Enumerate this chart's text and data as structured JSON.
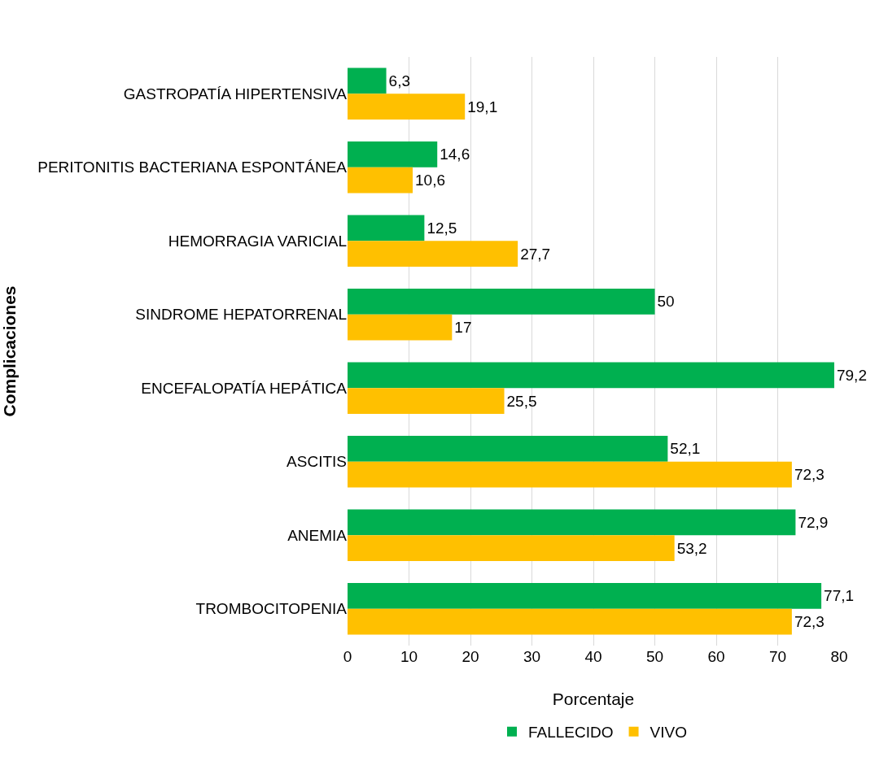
{
  "chart_data": {
    "type": "bar",
    "orientation": "horizontal",
    "xlabel": "Porcentaje",
    "ylabel": "Complicaciones",
    "categories": [
      "GASTROPATÍA HIPERTENSIVA",
      "PERITONITIS BACTERIANA ESPONTÁNEA",
      "HEMORRAGIA VARICIAL",
      "SINDROME HEPATORRENAL",
      "ENCEFALOPATÍA HEPÁTICA",
      "ASCITIS",
      "ANEMIA",
      "TROMBOCITOPENIA"
    ],
    "series": [
      {
        "name": "FALLECIDO",
        "color": "#00b050",
        "values": [
          6.3,
          14.6,
          12.5,
          50,
          79.2,
          52.1,
          72.9,
          77.1
        ],
        "value_labels": [
          "6,3",
          "14,6",
          "12,5",
          "50",
          "79,2",
          "52,1",
          "72,9",
          "77,1"
        ]
      },
      {
        "name": "VIVO",
        "color": "#ffc000",
        "values": [
          19.1,
          10.6,
          27.7,
          17,
          25.5,
          72.3,
          53.2,
          72.3
        ],
        "value_labels": [
          "19,1",
          "10,6",
          "27,7",
          "17",
          "25,5",
          "72,3",
          "53,2",
          "72,3"
        ]
      }
    ],
    "xlim": [
      0,
      80
    ],
    "xticks": [
      0,
      10,
      20,
      30,
      40,
      50,
      60,
      70,
      80
    ],
    "grid": "x",
    "legend": "bottom"
  }
}
